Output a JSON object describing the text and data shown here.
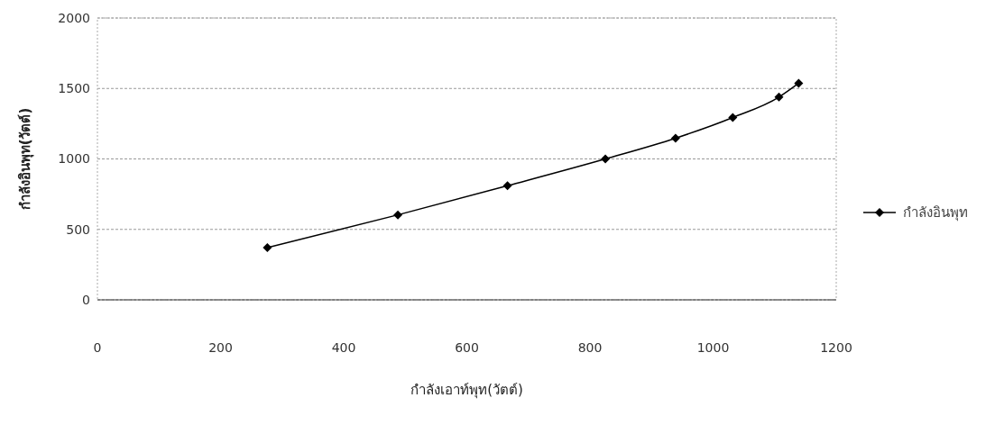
{
  "chart_data": {
    "type": "line",
    "xlabel": "กำลังเอาท์พุท(วัตต์)",
    "ylabel": "กำลังอินพุท(วัตต์)",
    "x": [
      276,
      488,
      666,
      825,
      939,
      1032,
      1107,
      1139
    ],
    "series": [
      {
        "name": "กำลังอินพุท",
        "color": "#000000",
        "values": [
          370,
          603,
          810,
          1000,
          1147,
          1294,
          1439,
          1537
        ]
      }
    ],
    "xlim": [
      0,
      1200
    ],
    "xticks": [
      0,
      200,
      400,
      600,
      800,
      1000,
      1200
    ],
    "ylim": [
      0,
      2000
    ],
    "yticks": [
      0,
      500,
      1000,
      1500,
      2000
    ],
    "grid": "y",
    "legend": "right",
    "marker": "diamond",
    "line_style": "solid"
  }
}
